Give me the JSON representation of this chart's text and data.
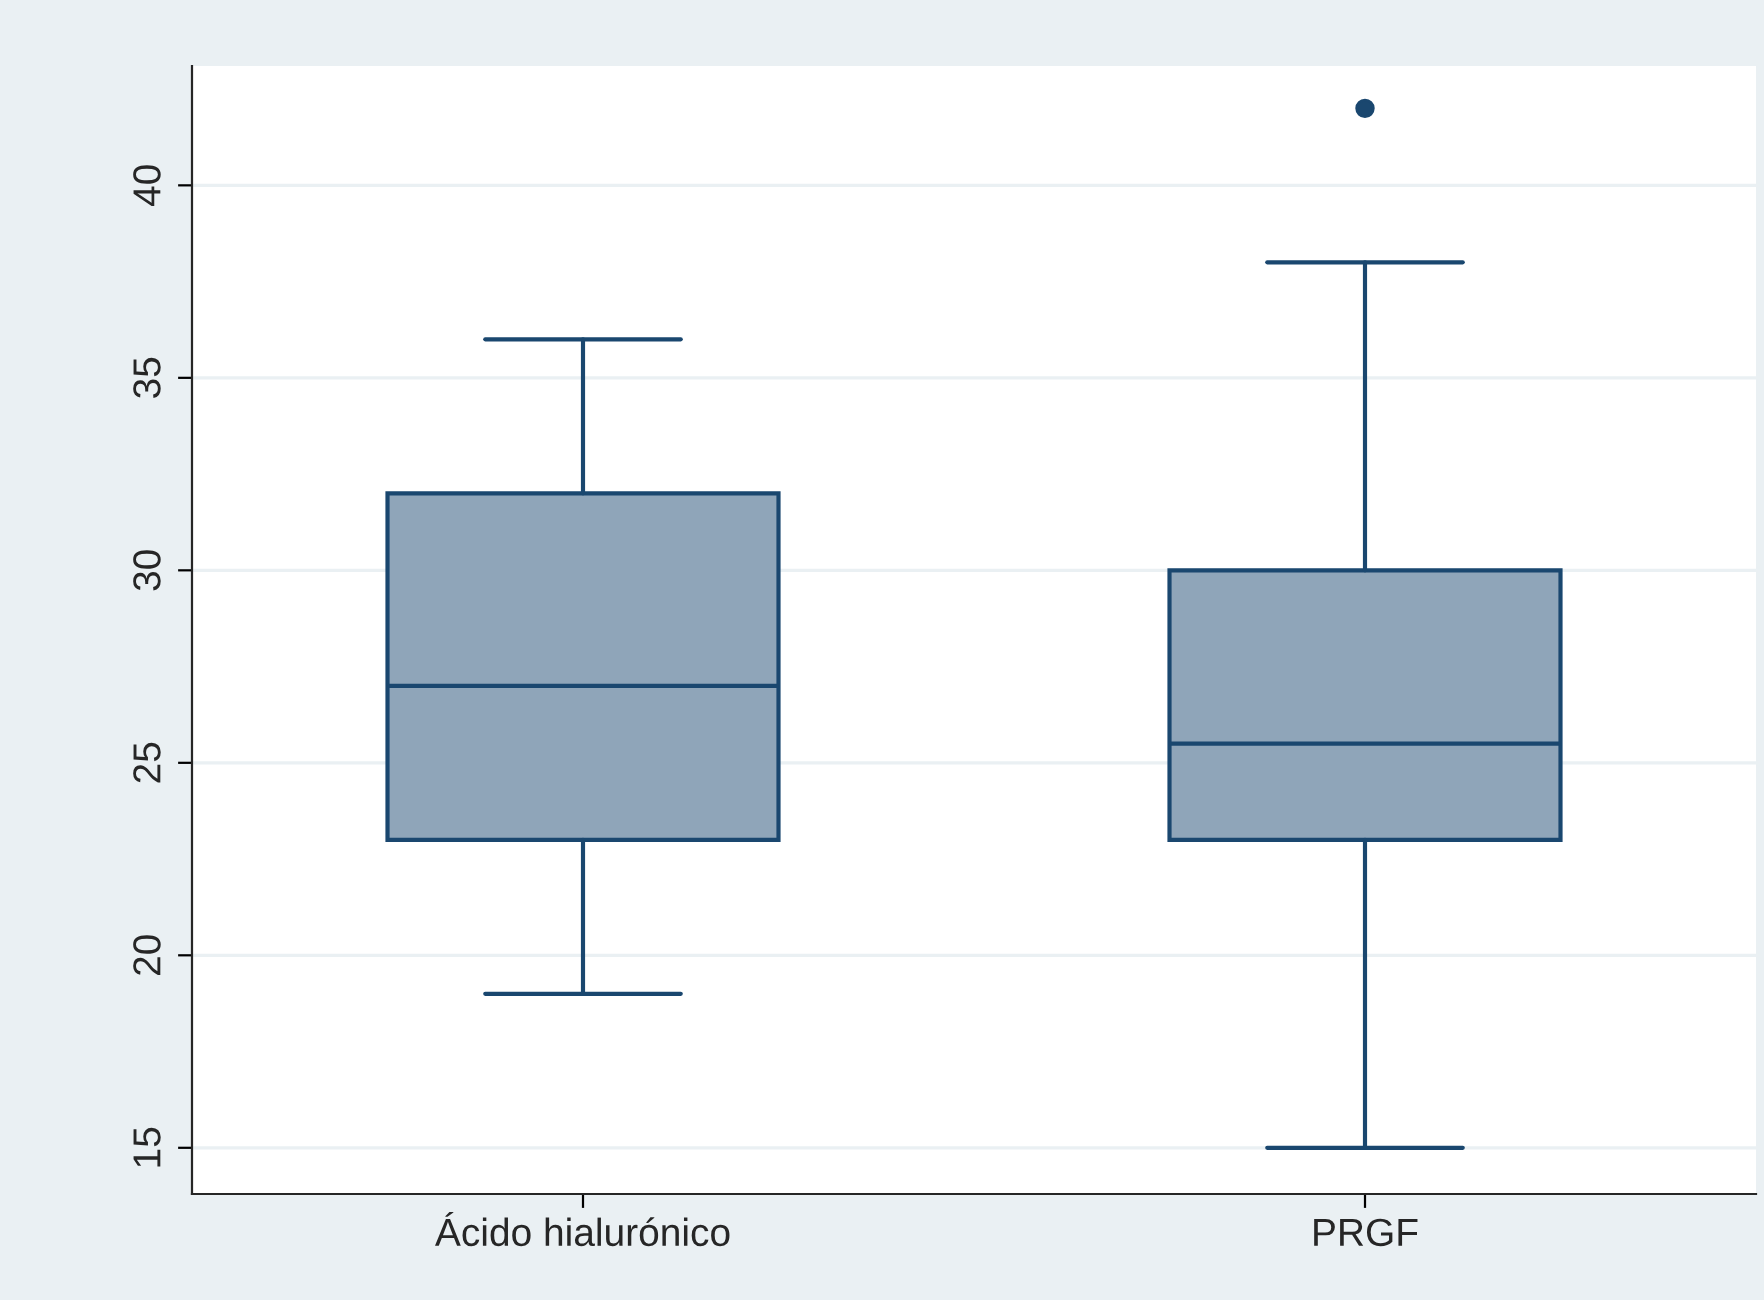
{
  "chart_data": {
    "type": "box",
    "categories": [
      "Ácido hialurónico",
      "PRGF"
    ],
    "boxes": [
      {
        "low": 19,
        "q1": 23,
        "median": 27,
        "q3": 32,
        "high": 36
      },
      {
        "low": 15,
        "q1": 23,
        "median": 25.5,
        "q3": 30,
        "high": 38,
        "outliers": [
          42
        ]
      }
    ],
    "color": "#8fa5b9",
    "ylim": [
      13.8,
      43.1
    ],
    "yticks": [
      15,
      20,
      25,
      30,
      35,
      40
    ],
    "grid": "y"
  }
}
